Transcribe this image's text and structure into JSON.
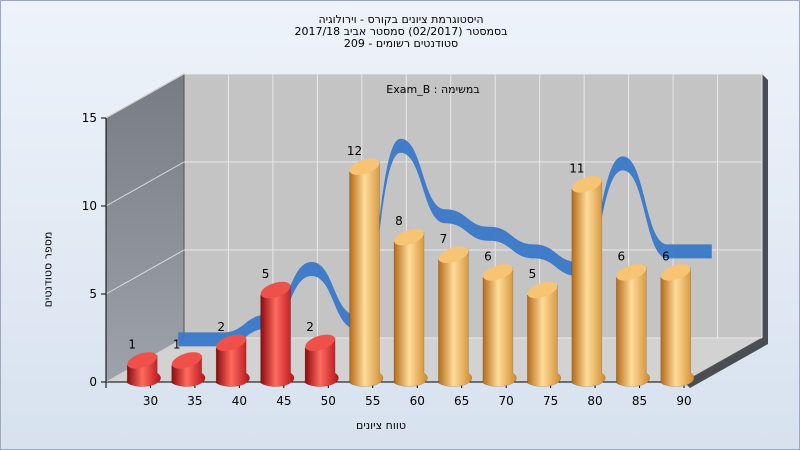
{
  "chart_data": {
    "type": "bar",
    "title_lines": [
      "היסטוגרמת ציונים בקורס - וירולוגיה",
      "בסמסטר  (02/2017)  סמסטר אביב 2017/18",
      "סטודנטים רשומים - 209"
    ],
    "annotation": "Exam_B : במשימה",
    "xlabel": "טווח ציונים",
    "ylabel": "מספר סטודנטים",
    "ylim": [
      0,
      15
    ],
    "yticks": [
      0,
      5,
      10,
      15
    ],
    "categories": [
      "30",
      "35",
      "40",
      "45",
      "50",
      "55",
      "60",
      "65",
      "70",
      "75",
      "80",
      "85",
      "90"
    ],
    "values": [
      1,
      1,
      2,
      5,
      2,
      12,
      8,
      7,
      6,
      5,
      11,
      6,
      6
    ],
    "value_labels": [
      "1",
      "1",
      "2",
      "5",
      "2",
      "12",
      "8",
      "7",
      "6",
      "5",
      "11",
      "6",
      "6"
    ],
    "bar_colors": [
      "#e0252a",
      "#e0252a",
      "#e0252a",
      "#e0252a",
      "#e0252a",
      "#e8a443",
      "#e8a443",
      "#e8a443",
      "#e8a443",
      "#e8a443",
      "#e8a443",
      "#e8a443",
      "#e8a443"
    ],
    "curve_color": "#3a78c8",
    "grid": true,
    "legend": "none"
  }
}
